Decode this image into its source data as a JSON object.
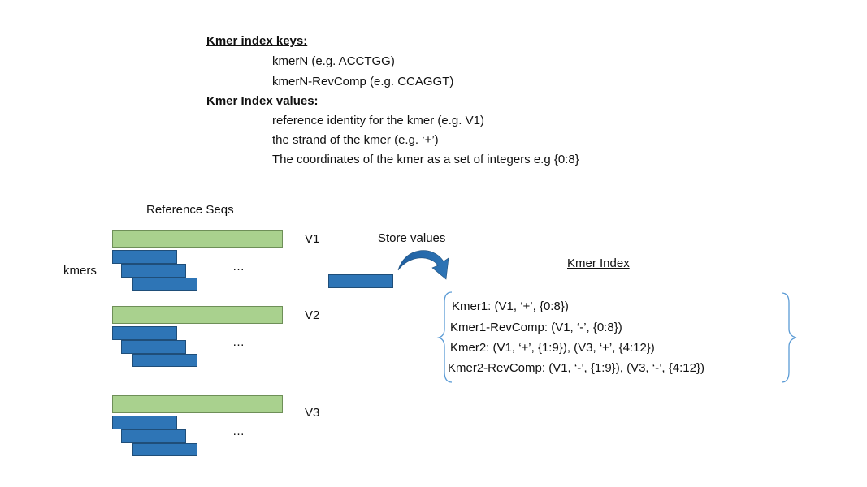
{
  "legend": {
    "keys_heading": "Kmer index keys:",
    "keys": [
      "kmerN (e.g. ACCTGG)",
      "kmerN-RevComp (e.g. CCAGGT)"
    ],
    "values_heading": "Kmer Index values:",
    "values": [
      "reference identity for the kmer (e.g. V1)",
      "the strand of the kmer (e.g. ‘+’)",
      "The coordinates of the kmer as a set of integers e.g {0:8}"
    ]
  },
  "reference": {
    "title": "Reference Seqs",
    "kmers_label": "kmers",
    "ellipsis": "…",
    "sequences": [
      "V1",
      "V2",
      "V3"
    ]
  },
  "store_label": "Store values",
  "index": {
    "title": "Kmer Index",
    "entries": [
      "Kmer1: (V1, ‘+’, {0:8})",
      "Kmer1-RevComp: (V1, ‘-’, {0:8})",
      "Kmer2: (V1, ‘+’, {1:9}), (V3, ‘+’, {4:12})",
      "Kmer2-RevComp: (V1, ‘-’, {1:9}), (V3, ‘-’, {4:12})"
    ]
  },
  "colors": {
    "reference_bar": "#a9d18e",
    "kmer_bar": "#2e75b6",
    "brace": "#5b9bd5",
    "arrow": "#2e75b6"
  }
}
